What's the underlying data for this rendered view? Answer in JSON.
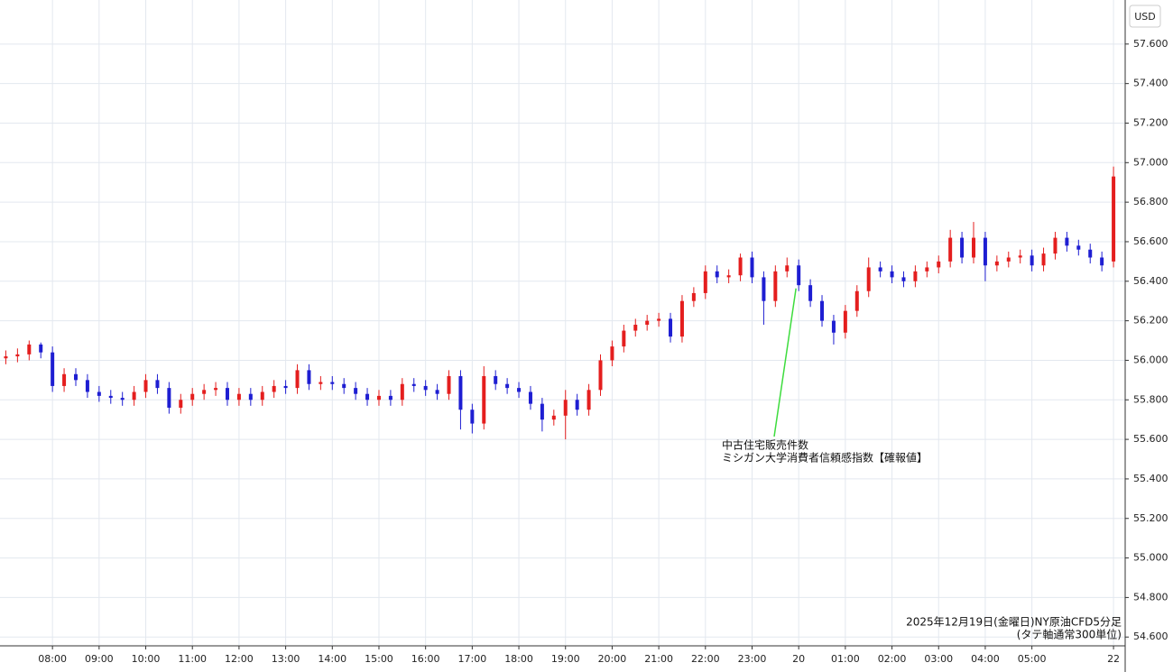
{
  "chart_data": {
    "type": "candlestick",
    "currency": "USD",
    "caption": [
      "2025年12月19日(金曜日)NY原油CFD5分足",
      "(タテ軸通常300単位)"
    ],
    "annotation": {
      "x": 68,
      "y": 56.4,
      "lines": [
        "中古住宅販売件数",
        "ミシガン大学消費者信頼感指数【確報値】"
      ]
    },
    "up_color": "#e41e1e",
    "down_color": "#1e1ed2",
    "x": [
      0,
      1,
      2,
      3,
      4,
      5,
      6,
      7,
      8,
      9,
      10,
      11,
      12,
      13,
      14,
      15,
      16,
      17,
      18,
      19,
      20,
      21,
      22,
      23,
      24,
      25,
      26,
      27,
      28,
      29,
      30,
      31,
      32,
      33,
      34,
      35,
      36,
      37,
      38,
      39,
      40,
      41,
      42,
      43,
      44,
      45,
      46,
      47,
      48,
      49,
      50,
      51,
      52,
      53,
      54,
      55,
      56,
      57,
      58,
      59,
      60,
      61,
      62,
      63,
      64,
      65,
      66,
      67,
      68,
      69,
      70,
      71,
      72,
      73,
      74,
      75,
      76,
      77,
      78,
      79,
      80,
      81,
      82,
      83,
      84,
      85,
      86,
      87,
      88,
      89,
      90,
      91,
      92,
      93,
      94,
      95
    ],
    "open": [
      56.01,
      56.02,
      56.03,
      56.08,
      56.04,
      55.87,
      55.93,
      55.9,
      55.84,
      55.82,
      55.81,
      55.8,
      55.84,
      55.9,
      55.86,
      55.76,
      55.8,
      55.83,
      55.85,
      55.86,
      55.8,
      55.83,
      55.8,
      55.84,
      55.87,
      55.86,
      55.95,
      55.88,
      55.89,
      55.88,
      55.86,
      55.83,
      55.8,
      55.82,
      55.8,
      55.88,
      55.87,
      55.85,
      55.83,
      55.92,
      55.75,
      55.68,
      55.92,
      55.88,
      55.86,
      55.84,
      55.78,
      55.7,
      55.72,
      55.8,
      55.75,
      55.85,
      56.0,
      56.07,
      56.15,
      56.18,
      56.2,
      56.21,
      56.12,
      56.3,
      56.34,
      56.45,
      56.42,
      56.43,
      56.52,
      56.42,
      56.3,
      56.45,
      56.48,
      56.38,
      56.3,
      56.2,
      56.14,
      56.25,
      56.35,
      56.47,
      56.45,
      56.42,
      56.4,
      56.45,
      56.47,
      56.5,
      56.62,
      56.52,
      56.62,
      56.48,
      56.5,
      56.52,
      56.53,
      56.48,
      56.54,
      56.62,
      56.58,
      56.56,
      56.52,
      56.5
    ],
    "high": [
      56.05,
      56.06,
      56.1,
      56.09,
      56.07,
      55.96,
      55.96,
      55.93,
      55.87,
      55.85,
      55.84,
      55.87,
      55.93,
      55.93,
      55.89,
      55.83,
      55.86,
      55.88,
      55.89,
      55.89,
      55.86,
      55.86,
      55.87,
      55.9,
      55.9,
      55.98,
      55.98,
      55.92,
      55.92,
      55.91,
      55.89,
      55.86,
      55.85,
      55.85,
      55.91,
      55.91,
      55.9,
      55.88,
      55.95,
      55.95,
      55.78,
      55.97,
      55.95,
      55.91,
      55.89,
      55.87,
      55.81,
      55.75,
      55.85,
      55.83,
      55.88,
      56.03,
      56.1,
      56.18,
      56.21,
      56.23,
      56.24,
      56.24,
      56.33,
      56.37,
      56.48,
      56.48,
      56.46,
      56.54,
      56.55,
      56.45,
      56.48,
      56.52,
      56.51,
      56.41,
      56.33,
      56.23,
      56.28,
      56.38,
      56.52,
      56.5,
      56.48,
      56.45,
      56.48,
      56.5,
      56.53,
      56.66,
      56.65,
      56.7,
      56.65,
      56.53,
      56.55,
      56.56,
      56.56,
      56.57,
      56.65,
      56.65,
      56.61,
      56.59,
      56.55,
      56.98
    ],
    "low": [
      55.98,
      55.99,
      56.0,
      56.01,
      55.84,
      55.84,
      55.87,
      55.81,
      55.79,
      55.78,
      55.77,
      55.77,
      55.81,
      55.83,
      55.73,
      55.73,
      55.77,
      55.8,
      55.82,
      55.77,
      55.77,
      55.77,
      55.77,
      55.81,
      55.83,
      55.83,
      55.85,
      55.85,
      55.85,
      55.83,
      55.8,
      55.77,
      55.77,
      55.77,
      55.77,
      55.84,
      55.82,
      55.8,
      55.8,
      55.65,
      55.63,
      55.65,
      55.85,
      55.83,
      55.81,
      55.75,
      55.64,
      55.67,
      55.6,
      55.72,
      55.72,
      55.82,
      55.97,
      56.04,
      56.12,
      56.15,
      56.17,
      56.09,
      56.09,
      56.27,
      56.31,
      56.39,
      56.39,
      56.4,
      56.39,
      56.18,
      56.27,
      56.42,
      56.35,
      56.27,
      56.17,
      56.08,
      56.11,
      56.22,
      56.32,
      56.42,
      56.39,
      56.37,
      56.37,
      56.42,
      56.44,
      56.47,
      56.49,
      56.49,
      56.4,
      56.45,
      56.47,
      56.49,
      56.45,
      56.45,
      56.51,
      56.55,
      56.53,
      56.49,
      56.45,
      56.47
    ],
    "close": [
      56.02,
      56.03,
      56.08,
      56.04,
      55.87,
      55.93,
      55.9,
      55.84,
      55.82,
      55.81,
      55.8,
      55.84,
      55.9,
      55.86,
      55.76,
      55.8,
      55.83,
      55.85,
      55.86,
      55.8,
      55.83,
      55.8,
      55.84,
      55.87,
      55.86,
      55.95,
      55.88,
      55.89,
      55.88,
      55.86,
      55.83,
      55.8,
      55.82,
      55.8,
      55.88,
      55.87,
      55.85,
      55.83,
      55.92,
      55.75,
      55.68,
      55.92,
      55.88,
      55.86,
      55.84,
      55.78,
      55.7,
      55.72,
      55.8,
      55.75,
      55.85,
      56.0,
      56.07,
      56.15,
      56.18,
      56.2,
      56.21,
      56.12,
      56.3,
      56.34,
      56.45,
      56.42,
      56.43,
      56.52,
      56.42,
      56.3,
      56.45,
      56.48,
      56.38,
      56.3,
      56.2,
      56.14,
      56.25,
      56.35,
      56.47,
      56.45,
      56.42,
      56.4,
      56.45,
      56.47,
      56.5,
      56.62,
      56.52,
      56.62,
      56.48,
      56.5,
      56.52,
      56.53,
      56.48,
      56.54,
      56.62,
      56.58,
      56.56,
      56.52,
      56.48,
      56.93
    ],
    "xlim": [
      -0.5,
      96
    ],
    "xticks": [
      {
        "value": 4,
        "label": "08:00"
      },
      {
        "value": 8,
        "label": "09:00"
      },
      {
        "value": 12,
        "label": "10:00"
      },
      {
        "value": 16,
        "label": "11:00"
      },
      {
        "value": 20,
        "label": "12:00"
      },
      {
        "value": 24,
        "label": "13:00"
      },
      {
        "value": 28,
        "label": "14:00"
      },
      {
        "value": 32,
        "label": "15:00"
      },
      {
        "value": 36,
        "label": "16:00"
      },
      {
        "value": 40,
        "label": "17:00"
      },
      {
        "value": 44,
        "label": "18:00"
      },
      {
        "value": 48,
        "label": "19:00"
      },
      {
        "value": 52,
        "label": "20:00"
      },
      {
        "value": 56,
        "label": "21:00"
      },
      {
        "value": 60,
        "label": "22:00"
      },
      {
        "value": 64,
        "label": "23:00"
      },
      {
        "value": 68,
        "label": "20"
      },
      {
        "value": 72,
        "label": "01:00"
      },
      {
        "value": 76,
        "label": "02:00"
      },
      {
        "value": 80,
        "label": "03:00"
      },
      {
        "value": 84,
        "label": "04:00"
      },
      {
        "value": 88,
        "label": "05:00"
      },
      {
        "value": 95,
        "label": "22"
      }
    ],
    "ylim": [
      54.56,
      57.8
    ],
    "yticks": [
      {
        "value": 54.6,
        "label": "54.600"
      },
      {
        "value": 54.8,
        "label": "54.800"
      },
      {
        "value": 55.0,
        "label": "55.000"
      },
      {
        "value": 55.2,
        "label": "55.200"
      },
      {
        "value": 55.4,
        "label": "55.400"
      },
      {
        "value": 55.6,
        "label": "55.600"
      },
      {
        "value": 55.8,
        "label": "55.800"
      },
      {
        "value": 56.0,
        "label": "56.000"
      },
      {
        "value": 56.2,
        "label": "56.200"
      },
      {
        "value": 56.4,
        "label": "56.400"
      },
      {
        "value": 56.6,
        "label": "56.600"
      },
      {
        "value": 56.8,
        "label": "56.800"
      },
      {
        "value": 57.0,
        "label": "57.000"
      },
      {
        "value": 57.2,
        "label": "57.200"
      },
      {
        "value": 57.4,
        "label": "57.400"
      },
      {
        "value": 57.6,
        "label": "57.600"
      }
    ],
    "grid": true
  }
}
